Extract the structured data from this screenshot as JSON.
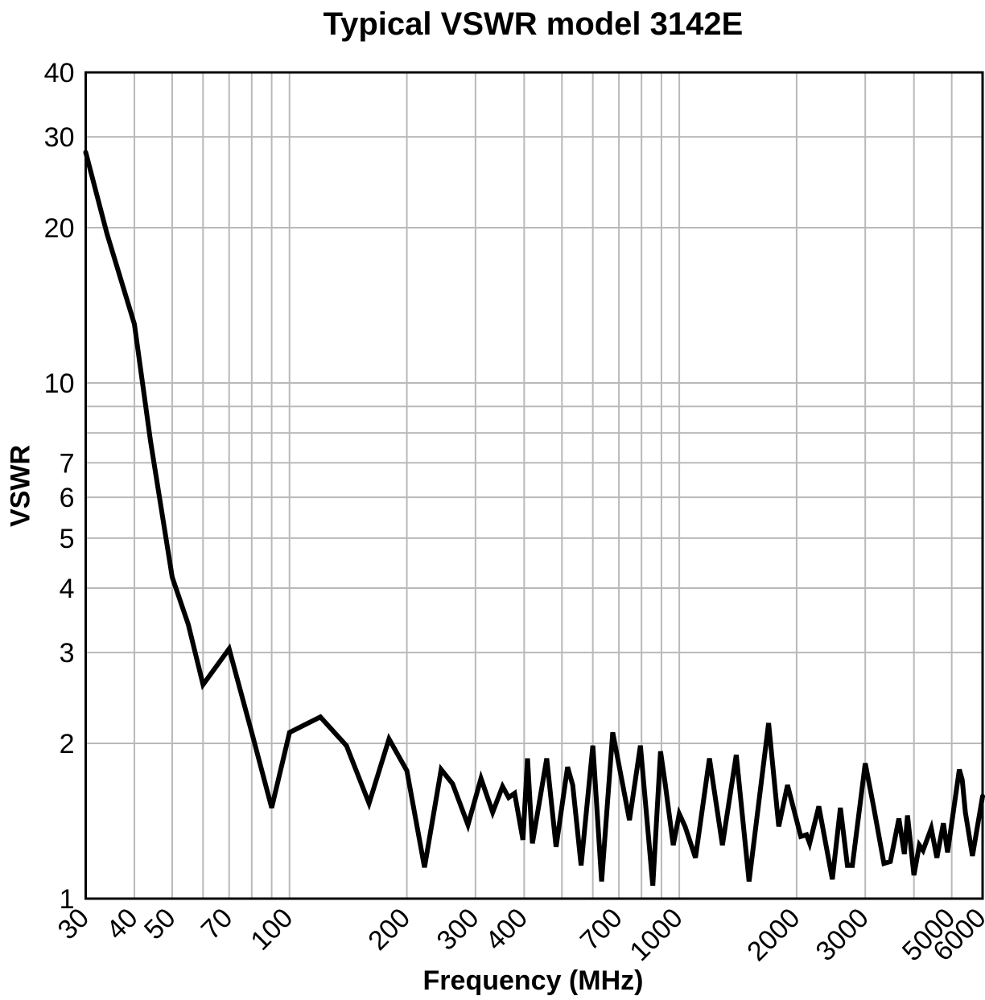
{
  "title": "Typical VSWR model 3142E",
  "chart_data": {
    "type": "line",
    "title": "Typical VSWR model 3142E",
    "xlabel": "Frequency (MHz)",
    "ylabel": "VSWR",
    "x_scale": "log",
    "y_scale": "log",
    "xlim": [
      30,
      6000
    ],
    "ylim": [
      1,
      40
    ],
    "grid": true,
    "legend": "none",
    "grid_color": "#b9b9b9",
    "line_color": "#000000",
    "frame_color": "#000000",
    "x_gridlines": [
      30,
      40,
      50,
      60,
      70,
      80,
      90,
      100,
      200,
      300,
      400,
      500,
      600,
      700,
      800,
      900,
      1000,
      2000,
      3000,
      4000,
      5000,
      6000
    ],
    "x_tick_labels": [
      "30",
      "40",
      "50",
      "70",
      "100",
      "200",
      "300",
      "400",
      "700",
      "1000",
      "2000",
      "3000",
      "5000",
      "6000"
    ],
    "x_tick_values": [
      30,
      40,
      50,
      70,
      100,
      200,
      300,
      400,
      700,
      1000,
      2000,
      3000,
      5000,
      6000
    ],
    "y_gridlines": [
      1,
      2,
      3,
      4,
      5,
      6,
      7,
      8,
      9,
      10,
      20,
      30,
      40
    ],
    "y_tick_labels": [
      "1",
      "2",
      "3",
      "4",
      "5",
      "6",
      "7",
      "10",
      "20",
      "30",
      "40"
    ],
    "y_tick_values": [
      1,
      2,
      3,
      4,
      5,
      6,
      7,
      10,
      20,
      30,
      40
    ],
    "series": [
      {
        "name": "Typical VSWR",
        "points": [
          [
            30,
            28
          ],
          [
            34,
            19.5
          ],
          [
            40,
            13
          ],
          [
            44,
            7.7
          ],
          [
            50,
            4.2
          ],
          [
            55,
            3.4
          ],
          [
            60,
            2.6
          ],
          [
            70,
            3.05
          ],
          [
            80,
            2.1
          ],
          [
            90,
            1.5
          ],
          [
            100,
            2.1
          ],
          [
            120,
            2.25
          ],
          [
            140,
            1.98
          ],
          [
            160,
            1.53
          ],
          [
            180,
            2.04
          ],
          [
            200,
            1.77
          ],
          [
            222,
            1.15
          ],
          [
            245,
            1.78
          ],
          [
            262,
            1.67
          ],
          [
            287,
            1.39
          ],
          [
            310,
            1.71
          ],
          [
            332,
            1.47
          ],
          [
            352,
            1.65
          ],
          [
            365,
            1.57
          ],
          [
            378,
            1.6
          ],
          [
            397,
            1.3
          ],
          [
            408,
            1.87
          ],
          [
            420,
            1.28
          ],
          [
            457,
            1.87
          ],
          [
            483,
            1.26
          ],
          [
            517,
            1.8
          ],
          [
            533,
            1.66
          ],
          [
            560,
            1.16
          ],
          [
            600,
            1.98
          ],
          [
            632,
            1.08
          ],
          [
            675,
            2.1
          ],
          [
            745,
            1.42
          ],
          [
            795,
            1.98
          ],
          [
            855,
            1.06
          ],
          [
            895,
            1.93
          ],
          [
            920,
            1.67
          ],
          [
            965,
            1.27
          ],
          [
            1000,
            1.46
          ],
          [
            1035,
            1.38
          ],
          [
            1100,
            1.2
          ],
          [
            1195,
            1.87
          ],
          [
            1290,
            1.27
          ],
          [
            1400,
            1.9
          ],
          [
            1510,
            1.08
          ],
          [
            1695,
            2.19
          ],
          [
            1800,
            1.38
          ],
          [
            1895,
            1.66
          ],
          [
            2050,
            1.32
          ],
          [
            2120,
            1.33
          ],
          [
            2160,
            1.28
          ],
          [
            2280,
            1.51
          ],
          [
            2470,
            1.09
          ],
          [
            2590,
            1.5
          ],
          [
            2700,
            1.16
          ],
          [
            2780,
            1.16
          ],
          [
            3000,
            1.83
          ],
          [
            3150,
            1.51
          ],
          [
            3350,
            1.17
          ],
          [
            3480,
            1.18
          ],
          [
            3660,
            1.43
          ],
          [
            3780,
            1.22
          ],
          [
            3850,
            1.45
          ],
          [
            4000,
            1.11
          ],
          [
            4130,
            1.27
          ],
          [
            4220,
            1.24
          ],
          [
            4430,
            1.37
          ],
          [
            4580,
            1.2
          ],
          [
            4760,
            1.4
          ],
          [
            4880,
            1.23
          ],
          [
            5230,
            1.78
          ],
          [
            5320,
            1.7
          ],
          [
            5420,
            1.47
          ],
          [
            5650,
            1.21
          ],
          [
            6000,
            1.58
          ]
        ]
      }
    ]
  }
}
